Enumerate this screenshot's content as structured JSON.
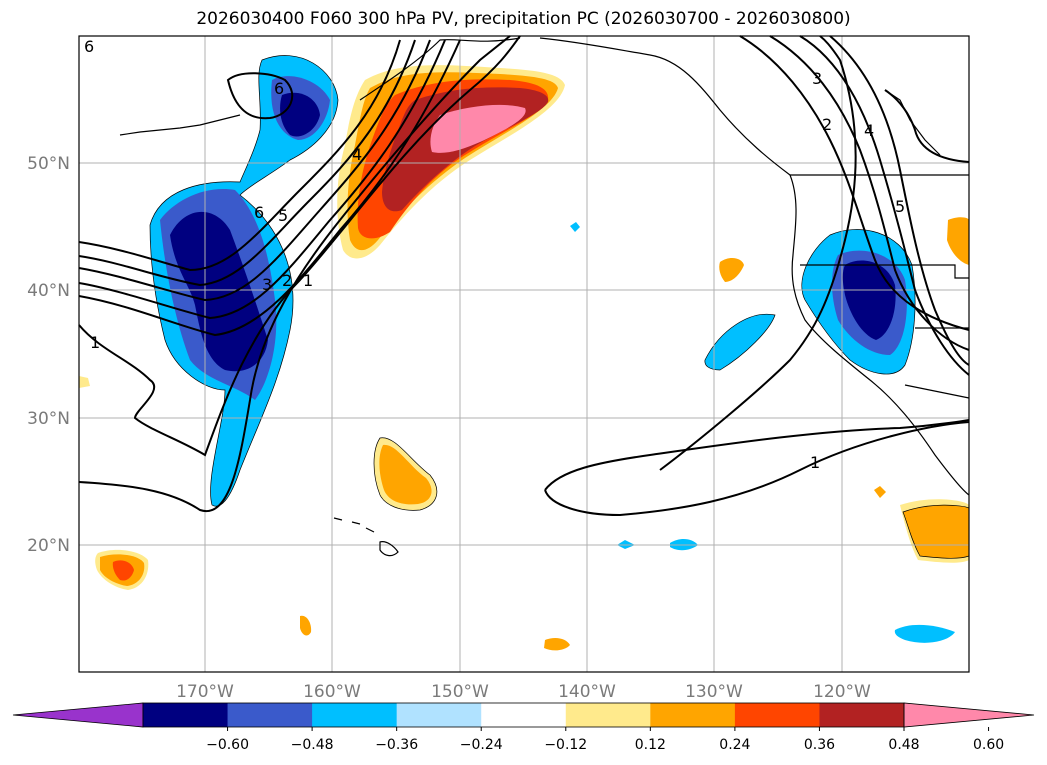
{
  "title": "2026030400 F060 300 hPa PV, precipitation PC (2026030700 - 2026030800)",
  "map": {
    "lon_ticks": [
      "170°W",
      "160°W",
      "150°W",
      "140°W",
      "130°W",
      "120°W"
    ],
    "lat_ticks": [
      "50°N",
      "40°N",
      "30°N",
      "20°N"
    ],
    "pv_contour_labels": [
      "6",
      "6",
      "5",
      "4",
      "3",
      "2",
      "1",
      "1",
      "1",
      "2",
      "3",
      "4",
      "5",
      "6"
    ]
  },
  "colorbar": {
    "ticks": [
      "−0.60",
      "−0.48",
      "−0.36",
      "−0.24",
      "−0.12",
      "0.12",
      "0.24",
      "0.36",
      "0.48",
      "0.60"
    ],
    "colors": [
      "#9933cc",
      "#000080",
      "#3a5acb",
      "#00bfff",
      "#b0e2ff",
      "#ffffff",
      "#ffea8c",
      "#ffa500",
      "#ff4500",
      "#b22222",
      "#ff88aa"
    ]
  }
}
